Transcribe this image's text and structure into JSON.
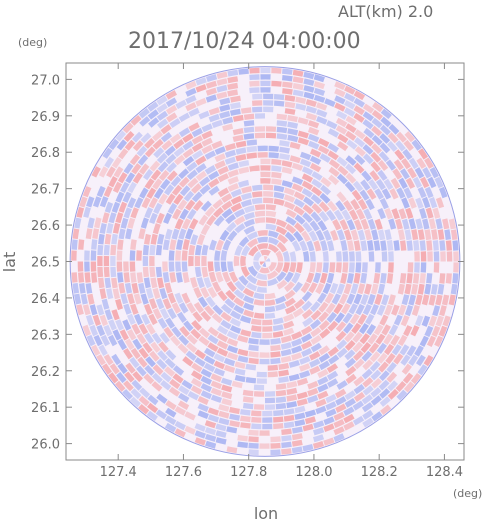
{
  "chart_data": {
    "type": "heatmap",
    "title": "2017/10/24 04:00:00",
    "subtitle": "ALT(km) 2.0",
    "xlabel": "lon",
    "ylabel": "lat",
    "xunit": "(deg)",
    "yunit": "(deg)",
    "xlim": [
      127.24,
      128.46
    ],
    "ylim": [
      25.955,
      27.045
    ],
    "xticks": [
      "127.4",
      "127.6",
      "127.8",
      "128.0",
      "128.2",
      "128.4"
    ],
    "yticks": [
      "26.0",
      "26.1",
      "26.2",
      "26.3",
      "26.4",
      "26.5",
      "26.6",
      "26.7",
      "26.8",
      "26.9",
      "27.0"
    ],
    "center": {
      "lon": 127.85,
      "lat": 26.5
    },
    "radius_deg": 0.535,
    "colors": {
      "positive": "#f4a9ae",
      "negative": "#a9b4f2",
      "neutral": "#f7f0fa",
      "frame": "#8a8a8a"
    }
  }
}
